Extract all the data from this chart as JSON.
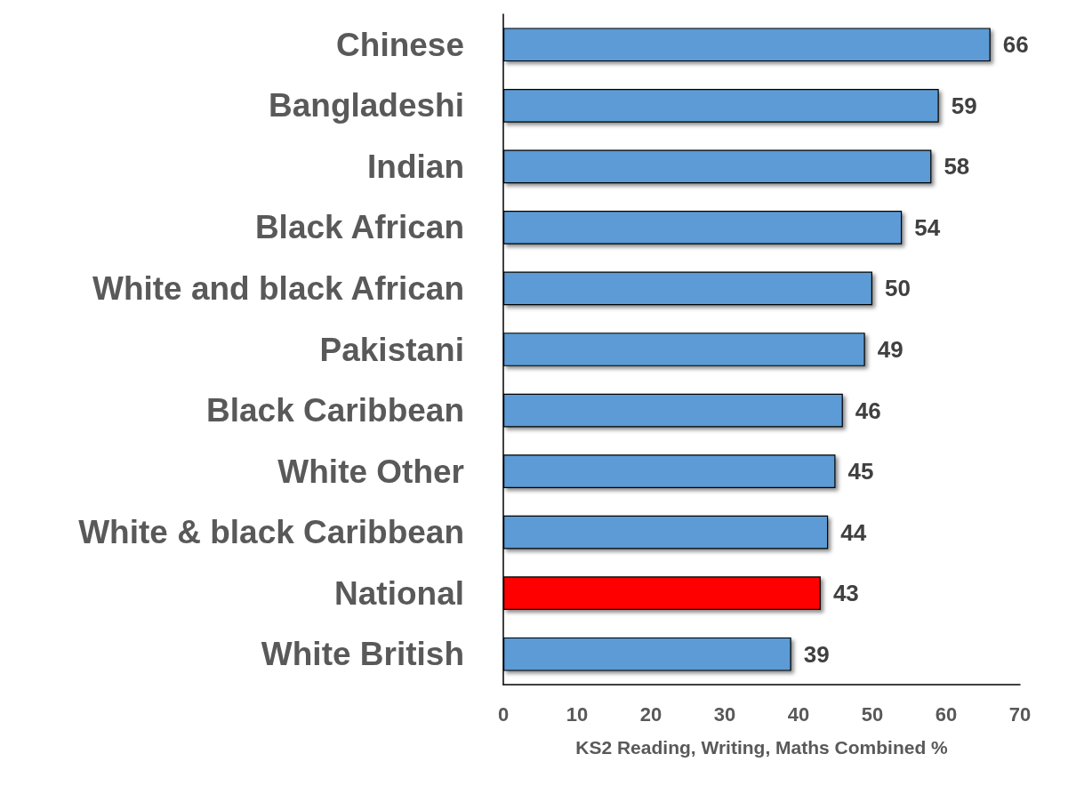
{
  "chart_data": {
    "type": "bar",
    "orientation": "horizontal",
    "xlabel": "KS2 Reading, Writing, Maths Combined %",
    "categories": [
      "Chinese",
      "Bangladeshi",
      "Indian",
      "Black African",
      "White and black African",
      "Pakistani",
      "Black Caribbean",
      "White Other",
      "White & black Caribbean",
      "National",
      "White British"
    ],
    "values": [
      66,
      59,
      58,
      54,
      50,
      49,
      46,
      45,
      44,
      43,
      39
    ],
    "colors": [
      "#5b9bd5",
      "#5b9bd5",
      "#5b9bd5",
      "#5b9bd5",
      "#5b9bd5",
      "#5b9bd5",
      "#5b9bd5",
      "#5b9bd5",
      "#5b9bd5",
      "#ff0000",
      "#5b9bd5"
    ],
    "xlim": [
      0,
      70
    ],
    "xticks": [
      0,
      10,
      20,
      30,
      40,
      50,
      60,
      70
    ],
    "grid": false,
    "data_labels": true
  }
}
